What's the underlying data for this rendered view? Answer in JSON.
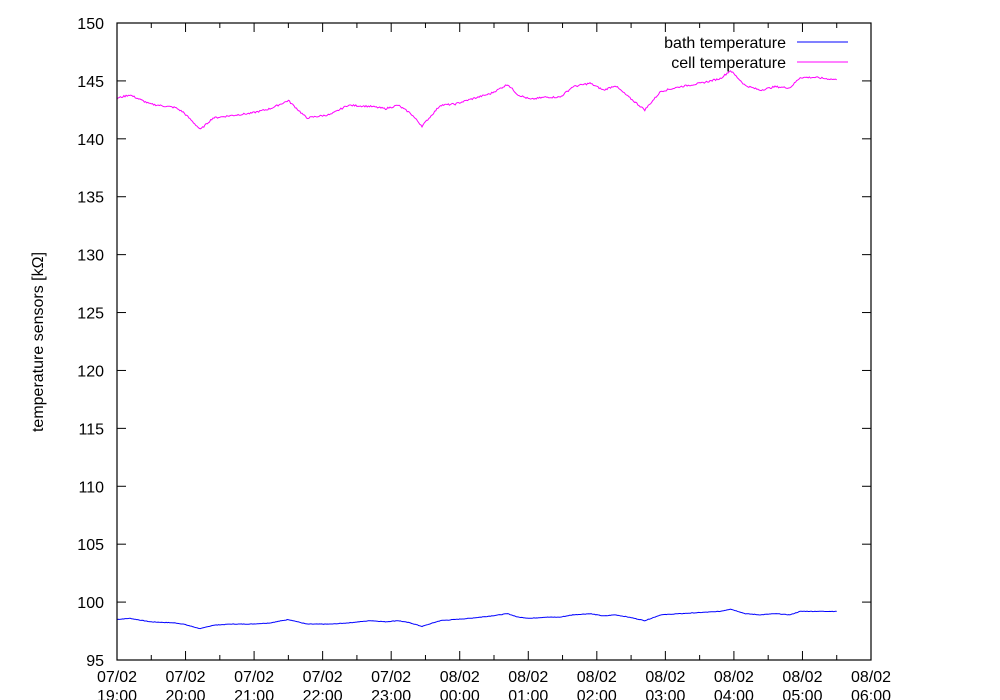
{
  "chart_data": {
    "type": "line",
    "title": "",
    "xlabel": "",
    "ylabel": "temperature sensors [kΩ]",
    "ylim": [
      95,
      150
    ],
    "yticks": [
      "95",
      "100",
      "105",
      "110",
      "115",
      "120",
      "125",
      "130",
      "135",
      "140",
      "145",
      "150"
    ],
    "xlim": [
      "07/02 19:00",
      "08/02 06:00"
    ],
    "xticks": [
      [
        "07/02",
        "19:00"
      ],
      [
        "07/02",
        "20:00"
      ],
      [
        "07/02",
        "21:00"
      ],
      [
        "07/02",
        "22:00"
      ],
      [
        "07/02",
        "23:00"
      ],
      [
        "08/02",
        "00:00"
      ],
      [
        "08/02",
        "01:00"
      ],
      [
        "08/02",
        "02:00"
      ],
      [
        "08/02",
        "03:00"
      ],
      [
        "08/02",
        "04:00"
      ],
      [
        "08/02",
        "05:00"
      ],
      [
        "08/02",
        "06:00"
      ]
    ],
    "grid": false,
    "legend": "top-right",
    "x": [
      "07/02 19:00",
      "07/02 19:11",
      "07/02 19:29",
      "07/02 19:51",
      "07/02 19:58",
      "07/02 20:13",
      "07/02 20:24",
      "07/02 20:39",
      "07/02 20:57",
      "07/02 21:14",
      "07/02 21:30",
      "07/02 21:46",
      "07/02 22:07",
      "07/02 22:22",
      "07/02 22:42",
      "07/02 22:55",
      "07/02 23:06",
      "07/02 23:17",
      "07/02 23:27",
      "07/02 23:43",
      "07/02 23:56",
      "08/02 00:09",
      "08/02 00:27",
      "08/02 00:42",
      "08/02 00:51",
      "08/02 01:02",
      "08/02 01:15",
      "08/02 01:28",
      "08/02 01:39",
      "08/02 01:54",
      "08/02 02:06",
      "08/02 02:16",
      "08/02 02:28",
      "08/02 02:42",
      "08/02 02:56",
      "08/02 03:13",
      "08/02 03:31",
      "08/02 03:48",
      "08/02 03:57",
      "08/02 04:10",
      "08/02 04:23",
      "08/02 04:36",
      "08/02 04:49",
      "08/02 04:58",
      "08/02 05:11",
      "08/02 05:30"
    ],
    "series": [
      {
        "name": "bath temperature",
        "color": "#0000ff",
        "values": [
          98.5,
          98.6,
          98.3,
          98.2,
          98.1,
          97.7,
          98.0,
          98.1,
          98.1,
          98.2,
          98.5,
          98.1,
          98.1,
          98.2,
          98.4,
          98.3,
          98.4,
          98.2,
          97.9,
          98.4,
          98.5,
          98.6,
          98.8,
          99.0,
          98.7,
          98.6,
          98.7,
          98.7,
          98.9,
          99.0,
          98.8,
          98.9,
          98.7,
          98.4,
          98.9,
          99.0,
          99.1,
          99.2,
          99.4,
          99.0,
          98.9,
          99.0,
          98.9,
          99.2,
          99.2,
          99.2
        ]
      },
      {
        "name": "cell temperature",
        "color": "#ff00ff",
        "values": [
          143.5,
          143.8,
          143.0,
          142.7,
          142.3,
          140.8,
          141.8,
          142.0,
          142.2,
          142.6,
          143.3,
          141.8,
          142.1,
          142.9,
          142.8,
          142.6,
          142.9,
          142.2,
          141.1,
          142.9,
          143.0,
          143.4,
          143.9,
          144.7,
          143.8,
          143.4,
          143.6,
          143.6,
          144.5,
          144.8,
          144.2,
          144.6,
          143.6,
          142.5,
          144.1,
          144.5,
          144.8,
          145.2,
          145.9,
          144.6,
          144.2,
          144.5,
          144.4,
          145.3,
          145.3,
          145.1
        ]
      }
    ]
  }
}
